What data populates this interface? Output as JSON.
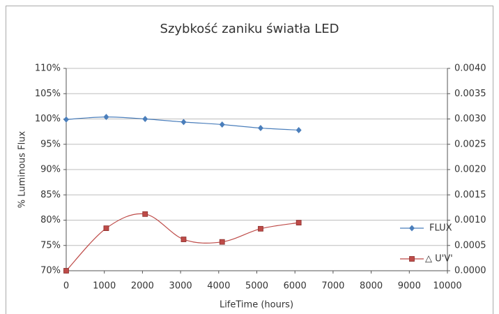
{
  "chart_data": {
    "type": "line",
    "title": "Szybkość zaniku światła LED",
    "xlabel": "LifeTime (hours)",
    "ylabel": "% Luminous Flux",
    "xlim": [
      0,
      10000
    ],
    "xticks": [
      0,
      1000,
      2000,
      3000,
      4000,
      5000,
      6000,
      7000,
      8000,
      9000,
      10000
    ],
    "ylim": [
      70,
      110
    ],
    "yticks": [
      {
        "value": 70,
        "label": "70%"
      },
      {
        "value": 75,
        "label": "75%"
      },
      {
        "value": 80,
        "label": "80%"
      },
      {
        "value": 85,
        "label": "85%"
      },
      {
        "value": 90,
        "label": "90%"
      },
      {
        "value": 95,
        "label": "95%"
      },
      {
        "value": 100,
        "label": "100%"
      },
      {
        "value": 105,
        "label": "105%"
      },
      {
        "value": 110,
        "label": "110%"
      }
    ],
    "y2lim": [
      0,
      0.004
    ],
    "y2ticks": [
      {
        "value": 0,
        "label": "0.0000"
      },
      {
        "value": 0.0005,
        "label": "0.0005"
      },
      {
        "value": 0.001,
        "label": "0.0010"
      },
      {
        "value": 0.0015,
        "label": "0.0015"
      },
      {
        "value": 0.002,
        "label": "0.0020"
      },
      {
        "value": 0.0025,
        "label": "0.0025"
      },
      {
        "value": 0.003,
        "label": "0.0030"
      },
      {
        "value": 0.0035,
        "label": "0.0035"
      },
      {
        "value": 0.004,
        "label": "0.0040"
      }
    ],
    "grid": true,
    "legend": "right",
    "x": [
      0,
      1050,
      2070,
      3080,
      4090,
      5100,
      6100
    ],
    "series": [
      {
        "name": "FLUX",
        "color": "#4a7ebb",
        "marker": "diamond",
        "values": [
          99.9,
          100.4,
          100.0,
          99.4,
          98.9,
          98.2,
          97.8
        ]
      },
      {
        "name": "△ U'V'",
        "color": "#be4b48",
        "marker": "square",
        "axis": "y2",
        "values": [
          0,
          0.00084,
          0.00112,
          0.00062,
          0.00057,
          0.00083,
          0.00095
        ]
      }
    ]
  }
}
